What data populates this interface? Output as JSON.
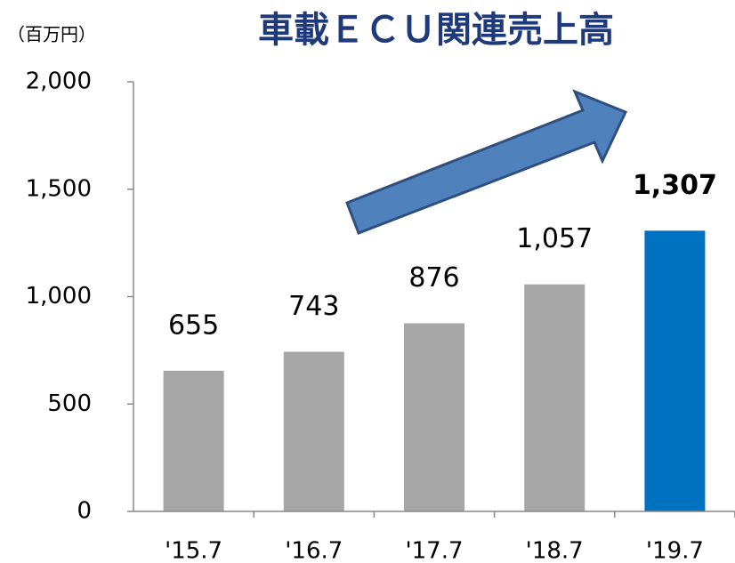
{
  "chart_data": {
    "type": "bar",
    "title": "車載ＥＣＵ関連売上高",
    "unit_label": "（百万円）",
    "categories": [
      "'15.7",
      "'16.7",
      "'17.7",
      "'18.7",
      "'19.7"
    ],
    "values": [
      655,
      743,
      876,
      1057,
      1307
    ],
    "value_labels": [
      "655",
      "743",
      "876",
      "1,057",
      "1,307"
    ],
    "colors": [
      "#a6a6a6",
      "#a6a6a6",
      "#a6a6a6",
      "#a6a6a6",
      "#0070c0"
    ],
    "ylim": [
      0,
      2000
    ],
    "yticks": [
      0,
      500,
      {
        "value": 1000,
        "label": "1,000"
      },
      {
        "value": 1500,
        "label": "1,500"
      },
      {
        "value": 2000,
        "label": "2,000"
      }
    ]
  }
}
